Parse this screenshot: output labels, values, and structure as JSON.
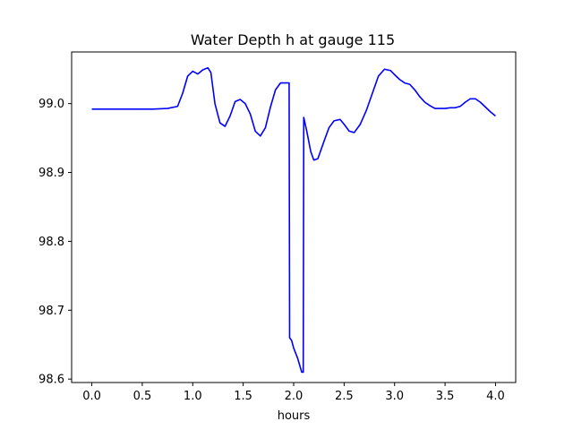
{
  "chart_data": {
    "type": "line",
    "title": "Water Depth h at gauge 115",
    "xlabel": "hours",
    "ylabel": "",
    "xlim": [
      -0.2,
      4.2
    ],
    "ylim": [
      98.595,
      99.075
    ],
    "xticks": [
      0.0,
      0.5,
      1.0,
      1.5,
      2.0,
      2.5,
      3.0,
      3.5,
      4.0
    ],
    "xtick_labels": [
      "0.0",
      "0.5",
      "1.0",
      "1.5",
      "2.0",
      "2.5",
      "3.0",
      "3.5",
      "4.0"
    ],
    "yticks": [
      98.6,
      98.7,
      98.8,
      98.9,
      99.0
    ],
    "ytick_labels": [
      "98.6",
      "98.7",
      "98.8",
      "98.9",
      "99.0"
    ],
    "grid": false,
    "series": [
      {
        "color": "#0000ff",
        "x": [
          0.0,
          0.2,
          0.4,
          0.6,
          0.75,
          0.85,
          0.9,
          0.95,
          1.0,
          1.05,
          1.1,
          1.15,
          1.18,
          1.22,
          1.27,
          1.32,
          1.37,
          1.42,
          1.47,
          1.52,
          1.57,
          1.62,
          1.67,
          1.72,
          1.77,
          1.82,
          1.87,
          1.91,
          1.94,
          1.955,
          1.96,
          1.98,
          2.0,
          2.04,
          2.08,
          2.095,
          2.1,
          2.13,
          2.17,
          2.2,
          2.24,
          2.3,
          2.35,
          2.4,
          2.46,
          2.5,
          2.55,
          2.6,
          2.66,
          2.72,
          2.78,
          2.84,
          2.9,
          2.96,
          3.0,
          3.05,
          3.1,
          3.15,
          3.2,
          3.25,
          3.3,
          3.35,
          3.4,
          3.45,
          3.5,
          3.55,
          3.6,
          3.65,
          3.7,
          3.75,
          3.8,
          3.85,
          3.9,
          3.95,
          4.0
        ],
        "values": [
          98.992,
          98.992,
          98.992,
          98.992,
          98.993,
          98.996,
          99.015,
          99.04,
          99.047,
          99.043,
          99.049,
          99.052,
          99.045,
          99.0,
          98.972,
          98.967,
          98.982,
          99.003,
          99.006,
          99.0,
          98.985,
          98.96,
          98.953,
          98.965,
          98.995,
          99.02,
          99.03,
          99.03,
          99.03,
          99.03,
          98.66,
          98.656,
          98.645,
          98.63,
          98.61,
          98.61,
          98.98,
          98.96,
          98.93,
          98.918,
          98.92,
          98.945,
          98.965,
          98.975,
          98.977,
          98.97,
          98.96,
          98.958,
          98.97,
          98.99,
          99.015,
          99.04,
          99.05,
          99.048,
          99.042,
          99.035,
          99.03,
          99.028,
          99.02,
          99.01,
          99.002,
          98.997,
          98.993,
          98.993,
          98.993,
          98.994,
          98.994,
          98.996,
          99.002,
          99.007,
          99.007,
          99.002,
          98.995,
          98.988,
          98.982
        ]
      }
    ]
  }
}
